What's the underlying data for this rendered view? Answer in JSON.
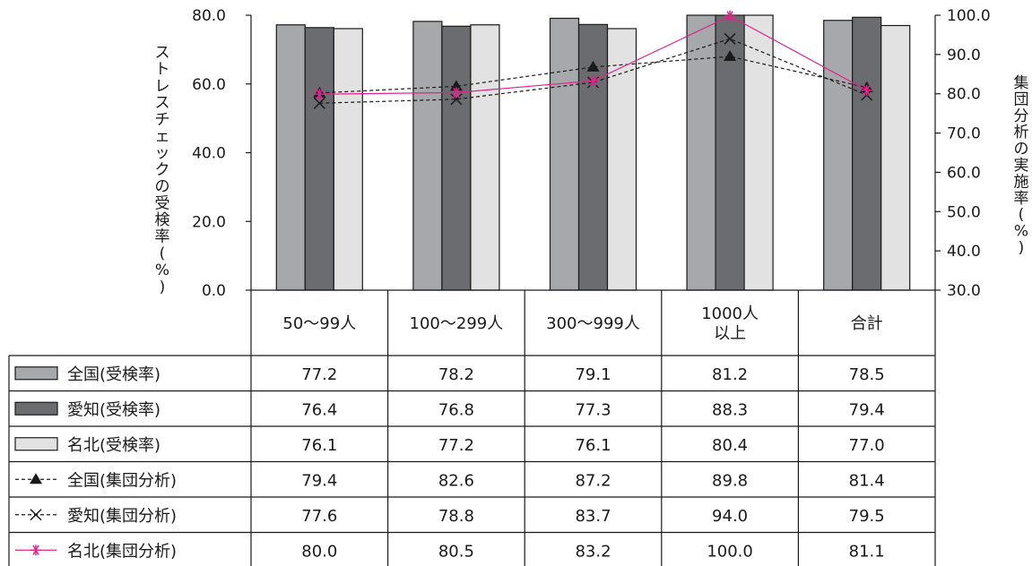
{
  "chart_data": {
    "type": "bar",
    "categories": [
      "50〜99人",
      "100〜299人",
      "300〜999人",
      "1000人\n以上",
      "合計"
    ],
    "y_left": {
      "label": "ストレスチェックの受検率(%)",
      "range": [
        0,
        80
      ],
      "ticks": [
        "0.0",
        "20.0",
        "40.0",
        "60.0",
        "80.0"
      ]
    },
    "y_right": {
      "label": "集団分析の実施率(%)",
      "range": [
        30,
        100
      ],
      "ticks": [
        "30.0",
        "40.0",
        "50.0",
        "60.0",
        "70.0",
        "80.0",
        "90.0",
        "100.0"
      ]
    },
    "bar_series": [
      {
        "name": "全国(受検率)",
        "color": "#a7a8ab",
        "values": [
          77.2,
          78.2,
          79.1,
          81.2,
          78.5
        ]
      },
      {
        "name": "愛知(受検率)",
        "color": "#6b6c70",
        "values": [
          76.4,
          76.8,
          77.3,
          88.3,
          79.4
        ]
      },
      {
        "name": "名北(受検率)",
        "color": "#e2e2e3",
        "values": [
          76.1,
          77.2,
          76.1,
          80.4,
          77.0
        ]
      }
    ],
    "line_series": [
      {
        "name": "全国(集団分析)",
        "color": "#1a1a1a",
        "marker": "triangle",
        "dash": true,
        "values": [
          79.4,
          82.6,
          87.2,
          89.8,
          81.4
        ],
        "plotted": [
          80.2,
          81.9,
          86.8,
          89.5,
          81.6
        ]
      },
      {
        "name": "愛知(集団分析)",
        "color": "#1a1a1a",
        "marker": "x",
        "dash": true,
        "values": [
          77.6,
          78.8,
          83.7,
          94.0,
          79.5
        ],
        "plotted": [
          77.6,
          78.6,
          82.9,
          94.0,
          79.7
        ]
      },
      {
        "name": "名北(集団分析)",
        "color": "#e0248a",
        "marker": "asterisk",
        "dash": false,
        "values": [
          80.0,
          80.5,
          83.2,
          100.0,
          81.1
        ],
        "plotted": [
          79.9,
          80.3,
          83.3,
          99.8,
          80.9
        ]
      }
    ],
    "grid": false,
    "legend": "table-left"
  }
}
